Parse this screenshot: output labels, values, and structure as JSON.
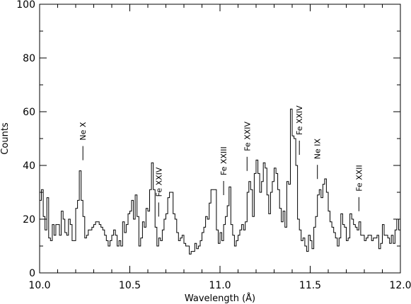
{
  "chart_data": {
    "type": "line",
    "step": true,
    "xlabel": "Wavelength (Å)",
    "ylabel": "Counts",
    "xlim": [
      10.0,
      12.0
    ],
    "ylim": [
      0,
      100
    ],
    "x_ticks": [
      10.0,
      10.5,
      11.0,
      11.5,
      12.0
    ],
    "x_tick_labels": [
      "10.0",
      "10.5",
      "11.0",
      "11.5",
      "12.0"
    ],
    "y_ticks": [
      0,
      20,
      40,
      60,
      80,
      100
    ],
    "y_tick_labels": [
      "0",
      "20",
      "40",
      "60",
      "80",
      "100"
    ],
    "grid": false,
    "series": [
      {
        "bin_width": 0.01,
        "x_start": 10.0,
        "values": [
          27,
          31,
          21,
          16,
          28,
          13,
          12,
          18,
          14,
          18,
          18,
          14,
          23,
          20,
          15,
          14,
          20,
          18,
          12,
          12,
          24,
          27,
          38,
          27,
          21,
          13,
          14,
          16,
          16,
          17,
          18,
          19,
          19,
          18,
          17,
          16,
          14,
          12,
          10,
          12,
          14,
          16,
          14,
          10,
          12,
          10,
          19,
          15,
          18,
          22,
          23,
          27,
          20,
          29,
          21,
          10,
          13,
          19,
          17,
          24,
          23,
          31,
          41,
          31,
          17,
          10,
          13,
          12,
          16,
          20,
          22,
          28,
          30,
          30,
          22,
          20,
          15,
          12,
          13,
          14,
          11,
          10,
          10,
          7,
          8,
          8,
          11,
          9,
          10,
          12,
          15,
          17,
          21,
          20,
          26,
          31,
          31,
          31,
          16,
          11,
          15,
          12,
          18,
          21,
          25,
          32,
          18,
          14,
          10,
          12,
          14,
          16,
          18,
          16,
          19,
          30,
          34,
          31,
          21,
          37,
          42,
          37,
          30,
          34,
          41,
          39,
          29,
          22,
          30,
          34,
          39,
          37,
          31,
          24,
          19,
          23,
          17,
          34,
          33,
          61,
          51,
          50,
          40,
          20,
          16,
          12,
          13,
          10,
          8,
          14,
          12,
          9,
          17,
          21,
          29,
          31,
          28,
          33,
          35,
          30,
          23,
          19,
          17,
          15,
          13,
          10,
          13,
          22,
          18,
          17,
          12,
          13,
          22,
          20,
          18,
          17,
          16,
          19,
          14,
          14,
          12,
          13,
          14,
          14,
          12,
          13,
          13,
          14,
          9,
          11,
          18,
          14,
          14,
          13,
          11,
          14,
          11,
          16,
          20,
          16,
          21
        ]
      }
    ],
    "annotations": [
      {
        "label": "Ne X",
        "x": 10.24
      },
      {
        "label": "Fe XXIV",
        "x": 10.66
      },
      {
        "label": "Fe XXIII",
        "x": 11.02
      },
      {
        "label": "Fe XXIV",
        "x": 11.15
      },
      {
        "label": "Fe XXIV",
        "x": 11.44
      },
      {
        "label": "Ne IX",
        "x": 11.54
      },
      {
        "label": "Fe XXII",
        "x": 11.77
      }
    ]
  }
}
